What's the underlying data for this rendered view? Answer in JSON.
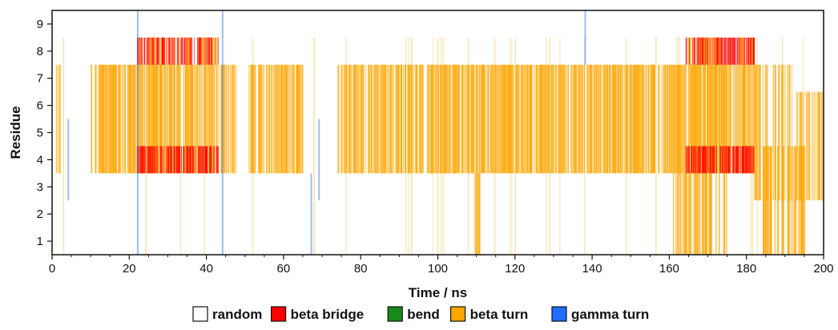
{
  "chart_data": {
    "type": "heatmap",
    "xlabel": "Time / ns",
    "ylabel": "Residue",
    "xlim": [
      0,
      200
    ],
    "ylim": [
      0.5,
      9.5
    ],
    "x_ticks": [
      0,
      20,
      40,
      60,
      80,
      100,
      120,
      140,
      160,
      180,
      200
    ],
    "y_ticks": [
      1,
      2,
      3,
      4,
      5,
      6,
      7,
      8,
      9
    ],
    "grid": false,
    "legend_position": "bottom",
    "legend": [
      {
        "key": "random",
        "label": "random",
        "color": "#ffffff"
      },
      {
        "key": "beta_bridge",
        "label": "beta bridge",
        "color": "#ff0000"
      },
      {
        "key": "bend",
        "label": "bend",
        "color": "#1a8a1a"
      },
      {
        "key": "beta_turn",
        "label": "beta turn",
        "color": "#ffa500"
      },
      {
        "key": "gamma_turn",
        "label": "gamma turn",
        "color": "#1e6fff"
      }
    ],
    "segments": [
      {
        "state": "beta_turn",
        "residues": [
          4,
          7
        ],
        "x": [
          1,
          2
        ],
        "density": 0.8
      },
      {
        "state": "beta_turn",
        "residues": [
          4,
          7
        ],
        "x": [
          10,
          48
        ],
        "density": 0.78
      },
      {
        "state": "beta_bridge",
        "residues": [
          4,
          4
        ],
        "x": [
          22,
          43
        ],
        "density": 0.7
      },
      {
        "state": "beta_bridge",
        "residues": [
          8,
          8
        ],
        "x": [
          22,
          43
        ],
        "density": 0.7
      },
      {
        "state": "beta_turn",
        "residues": [
          8,
          8
        ],
        "x": [
          22,
          43
        ],
        "density": 0.3
      },
      {
        "state": "beta_turn",
        "residues": [
          4,
          7
        ],
        "x": [
          51,
          65
        ],
        "density": 0.75
      },
      {
        "state": "beta_turn",
        "residues": [
          4,
          7
        ],
        "x": [
          74,
          96
        ],
        "density": 0.8
      },
      {
        "state": "beta_turn",
        "residues": [
          4,
          7
        ],
        "x": [
          97,
          162
        ],
        "density": 0.82
      },
      {
        "state": "beta_turn",
        "residues": [
          4,
          7
        ],
        "x": [
          162,
          182
        ],
        "density": 0.9
      },
      {
        "state": "beta_bridge",
        "residues": [
          4,
          4
        ],
        "x": [
          164,
          182
        ],
        "density": 0.75
      },
      {
        "state": "beta_bridge",
        "residues": [
          8,
          8
        ],
        "x": [
          164,
          182
        ],
        "density": 0.75
      },
      {
        "state": "beta_turn",
        "residues": [
          8,
          8
        ],
        "x": [
          164,
          182
        ],
        "density": 0.3
      },
      {
        "state": "beta_turn",
        "residues": [
          1,
          3
        ],
        "x": [
          161,
          170
        ],
        "density": 0.6
      },
      {
        "state": "beta_turn",
        "residues": [
          1,
          3
        ],
        "x": [
          170,
          175
        ],
        "density": 0.3
      },
      {
        "state": "beta_turn",
        "residues": [
          1,
          3
        ],
        "x": [
          109.5,
          111
        ],
        "density": 0.9
      },
      {
        "state": "beta_turn",
        "residues": [
          3,
          7
        ],
        "x": [
          182,
          192
        ],
        "density": 0.4
      },
      {
        "state": "beta_turn",
        "residues": [
          1,
          4
        ],
        "x": [
          184,
          196
        ],
        "density": 0.55
      },
      {
        "state": "beta_turn",
        "residues": [
          3,
          6
        ],
        "x": [
          193,
          200
        ],
        "density": 0.7
      },
      {
        "state": "beta_turn",
        "residues": [
          1,
          8
        ],
        "x": [
          0,
          200
        ],
        "density": 0.03
      },
      {
        "state": "gamma_turn",
        "residues": [
          3,
          5
        ],
        "x": [
          4,
          4.6
        ],
        "density": 1
      },
      {
        "state": "gamma_turn",
        "residues": [
          1,
          9
        ],
        "x": [
          22,
          22.3
        ],
        "density": 1
      },
      {
        "state": "gamma_turn",
        "residues": [
          1,
          9
        ],
        "x": [
          44,
          44.3
        ],
        "density": 1
      },
      {
        "state": "gamma_turn",
        "residues": [
          1,
          3
        ],
        "x": [
          67,
          67.3
        ],
        "density": 1
      },
      {
        "state": "gamma_turn",
        "residues": [
          3,
          5
        ],
        "x": [
          69,
          69.3
        ],
        "density": 1
      },
      {
        "state": "gamma_turn",
        "residues": [
          8,
          9
        ],
        "x": [
          138,
          138.3
        ],
        "density": 1
      }
    ]
  }
}
